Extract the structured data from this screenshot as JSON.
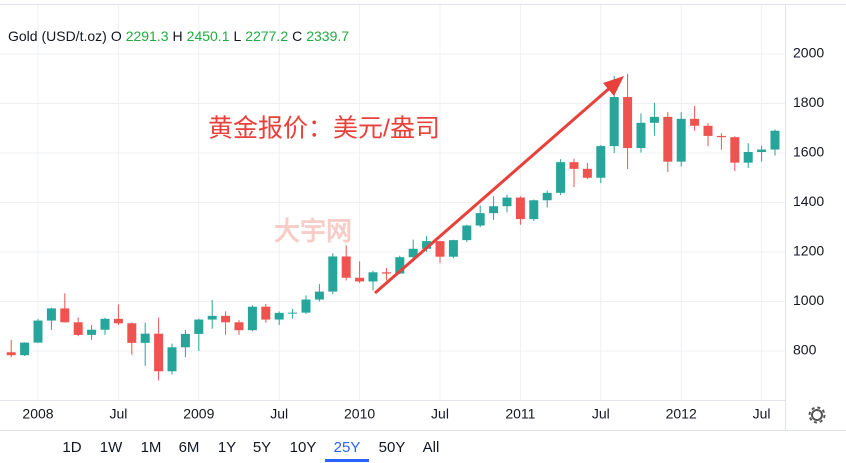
{
  "header": {
    "symbol": "Gold (USD/t.oz)",
    "ohlc": [
      {
        "label": "O",
        "value": 2291.3
      },
      {
        "label": "H",
        "value": 2450.1
      },
      {
        "label": "L",
        "value": 2277.2
      },
      {
        "label": "C",
        "value": 2339.7
      }
    ]
  },
  "chart_data": {
    "type": "candlestick",
    "annotations": [
      "黄金报价：美元/盎司"
    ],
    "watermark": "大宇网",
    "categories": [
      null,
      null,
      "2008",
      null,
      null,
      null,
      null,
      null,
      "Jul",
      null,
      null,
      null,
      null,
      null,
      "2009",
      null,
      null,
      null,
      null,
      null,
      "Jul",
      null,
      null,
      null,
      null,
      null,
      "2010",
      null,
      null,
      null,
      null,
      null,
      "Jul",
      null,
      null,
      null,
      null,
      null,
      "2011",
      null,
      null,
      null,
      null,
      null,
      "Jul",
      null,
      null,
      null,
      null,
      null,
      "2012",
      null,
      null,
      null,
      null,
      null,
      "Jul",
      null
    ],
    "open": [
      795,
      783,
      834,
      923,
      972,
      916,
      865,
      886,
      930,
      912,
      833,
      870,
      718,
      815,
      869,
      927,
      942,
      916,
      884,
      979,
      927,
      954,
      955,
      1008,
      1040,
      1182,
      1096,
      1081,
      1118,
      1113,
      1179,
      1213,
      1244,
      1181,
      1248,
      1307,
      1357,
      1385,
      1420,
      1333,
      1409,
      1439,
      1563,
      1536,
      1500,
      1628,
      1826,
      1620,
      1722,
      1746,
      1565,
      1738,
      1710,
      1669,
      1664,
      1561,
      1604,
      1614
    ],
    "high": [
      845,
      835,
      930,
      975,
      1033,
      935,
      905,
      935,
      988,
      915,
      915,
      935,
      830,
      885,
      930,
      1006,
      960,
      925,
      985,
      990,
      960,
      970,
      1025,
      1070,
      1195,
      1227,
      1162,
      1125,
      1135,
      1185,
      1250,
      1265,
      1245,
      1250,
      1310,
      1388,
      1425,
      1432,
      1425,
      1412,
      1448,
      1575,
      1577,
      1560,
      1632,
      1911,
      1920,
      1760,
      1803,
      1765,
      1765,
      1790,
      1720,
      1680,
      1668,
      1640,
      1630,
      1695
    ],
    "low": [
      775,
      780,
      832,
      885,
      915,
      860,
      845,
      865,
      905,
      785,
      740,
      681,
      705,
      775,
      800,
      890,
      866,
      865,
      880,
      915,
      905,
      930,
      950,
      1000,
      1030,
      1085,
      1075,
      1045,
      1085,
      1110,
      1160,
      1200,
      1155,
      1175,
      1240,
      1300,
      1330,
      1360,
      1310,
      1325,
      1380,
      1430,
      1462,
      1495,
      1478,
      1600,
      1535,
      1602,
      1670,
      1523,
      1545,
      1690,
      1628,
      1613,
      1527,
      1540,
      1565,
      1590
    ],
    "close": [
      783,
      834,
      923,
      972,
      916,
      865,
      886,
      930,
      912,
      833,
      870,
      718,
      815,
      869,
      927,
      942,
      916,
      884,
      979,
      927,
      954,
      955,
      1008,
      1040,
      1182,
      1096,
      1081,
      1118,
      1113,
      1179,
      1213,
      1244,
      1181,
      1248,
      1307,
      1357,
      1385,
      1420,
      1333,
      1409,
      1439,
      1563,
      1536,
      1500,
      1628,
      1826,
      1620,
      1722,
      1746,
      1565,
      1738,
      1710,
      1669,
      1664,
      1561,
      1604,
      1614,
      1690
    ],
    "up_color": "#26a69a",
    "down_color": "#ef5350",
    "ylim": [
      600,
      2200
    ],
    "yticks": [
      800,
      1000,
      1200,
      1400,
      1600,
      1800,
      2000
    ],
    "grid": true
  },
  "ranges": [
    "1D",
    "1W",
    "1M",
    "6M",
    "1Y",
    "5Y",
    "10Y",
    "25Y",
    "50Y",
    "All"
  ],
  "selected_range": "25Y"
}
